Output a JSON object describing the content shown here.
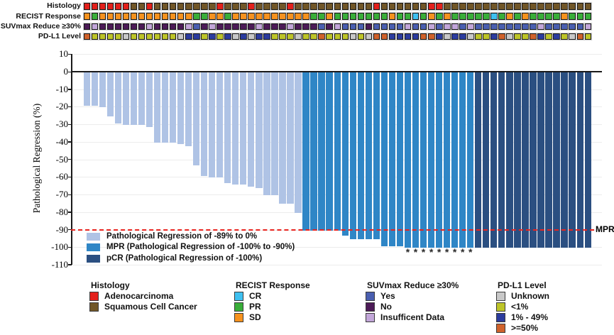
{
  "annotation_tracks": [
    {
      "label": "Histology",
      "palette": {
        "A": "#e3201b",
        "S": "#715627"
      },
      "legend_names": {
        "A": "Adenocarcinoma",
        "S": "Squamous Cell Cancer"
      },
      "codes": [
        "A",
        "A",
        "A",
        "A",
        "A",
        "A",
        "S",
        "S",
        "A",
        "S",
        "S",
        "S",
        "S",
        "S",
        "S",
        "S",
        "S",
        "A",
        "S",
        "S",
        "S",
        "A",
        "S",
        "S",
        "S",
        "S",
        "A",
        "S",
        "S",
        "S",
        "S",
        "S",
        "S",
        "S",
        "S",
        "S",
        "S",
        "A",
        "S",
        "S",
        "S",
        "S",
        "S",
        "S",
        "A",
        "A",
        "S",
        "S",
        "S",
        "S",
        "S",
        "S",
        "S",
        "S",
        "S",
        "S",
        "S",
        "S",
        "S",
        "S",
        "S",
        "S",
        "S",
        "S",
        "S"
      ]
    },
    {
      "label": "RECIST Response",
      "palette": {
        "C": "#3ec0f0",
        "P": "#39ae39",
        "D": "#f6921e"
      },
      "legend_names": {
        "C": "CR",
        "P": "PR",
        "D": "SD"
      },
      "codes": [
        "D",
        "P",
        "D",
        "D",
        "D",
        "D",
        "D",
        "D",
        "D",
        "D",
        "D",
        "D",
        "D",
        "D",
        "P",
        "P",
        "D",
        "D",
        "P",
        "D",
        "D",
        "D",
        "D",
        "D",
        "D",
        "D",
        "D",
        "D",
        "D",
        "P",
        "P",
        "D",
        "P",
        "P",
        "P",
        "P",
        "P",
        "P",
        "P",
        "D",
        "P",
        "P",
        "C",
        "P",
        "D",
        "P",
        "D",
        "P",
        "P",
        "P",
        "P",
        "P",
        "C",
        "P",
        "D",
        "P",
        "D",
        "P",
        "P",
        "P",
        "P",
        "D",
        "P",
        "P",
        "P"
      ]
    },
    {
      "label": "SUVmax Reduce ≥30%",
      "palette": {
        "Y": "#4a5fb0",
        "N": "#4c1b57",
        "I": "#c2a6d9"
      },
      "legend_names": {
        "Y": "Yes",
        "N": "No",
        "I": "Insufficent Data"
      },
      "codes": [
        "N",
        "I",
        "N",
        "N",
        "N",
        "N",
        "N",
        "N",
        "I",
        "N",
        "N",
        "N",
        "N",
        "I",
        "Y",
        "N",
        "I",
        "N",
        "N",
        "N",
        "N",
        "N",
        "I",
        "N",
        "N",
        "N",
        "I",
        "N",
        "N",
        "N",
        "Y",
        "N",
        "I",
        "Y",
        "Y",
        "Y",
        "N",
        "Y",
        "Y",
        "Y",
        "Y",
        "I",
        "Y",
        "Y",
        "I",
        "Y",
        "I",
        "I",
        "Y",
        "I",
        "Y",
        "Y",
        "Y",
        "Y",
        "Y",
        "Y",
        "Y",
        "Y",
        "I",
        "Y",
        "Y",
        "Y",
        "Y",
        "Y",
        "I"
      ]
    },
    {
      "label": "PD-L1 Level",
      "palette": {
        "U": "#c8c8c8",
        "L": "#bdc428",
        "M": "#2c3c9e",
        "H": "#d0622b"
      },
      "legend_names": {
        "U": "Unknown",
        "L": "<1%",
        "M": "1% - 49%",
        "H": ">=50%"
      },
      "codes": [
        "H",
        "L",
        "L",
        "L",
        "L",
        "U",
        "L",
        "L",
        "L",
        "L",
        "L",
        "L",
        "U",
        "M",
        "M",
        "L",
        "M",
        "L",
        "M",
        "U",
        "M",
        "U",
        "M",
        "M",
        "L",
        "L",
        "L",
        "U",
        "L",
        "L",
        "H",
        "L",
        "L",
        "L",
        "U",
        "L",
        "U",
        "H",
        "H",
        "M",
        "M",
        "M",
        "M",
        "H",
        "H",
        "M",
        "U",
        "M",
        "M",
        "U",
        "L",
        "L",
        "M",
        "H",
        "U",
        "L",
        "L",
        "H",
        "M",
        "L",
        "M",
        "L",
        "U",
        "H",
        "L"
      ]
    }
  ],
  "chart_data": {
    "type": "bar",
    "title": "",
    "xlabel": "",
    "ylabel": "Pathological Regression (%)",
    "ylim": [
      -110,
      10
    ],
    "yticks": [
      10,
      0,
      -10,
      -20,
      -30,
      -40,
      -50,
      -60,
      -70,
      -80,
      -90,
      -100,
      -110
    ],
    "grid": true,
    "n_bars": 65,
    "legend_position": "lower left inside plot",
    "series": [
      {
        "name": "Pathological Regression of -89% to 0%",
        "color": "#afc3e5",
        "values": [
          -19,
          -19,
          -20,
          -25,
          -29,
          -30,
          -30,
          -30,
          -31,
          -40,
          -40,
          -40,
          -41,
          -42,
          -53,
          -59,
          -60,
          -60,
          -63,
          -64,
          -64,
          -65,
          -66,
          -70,
          -70,
          -75,
          -75,
          -80
        ]
      },
      {
        "name": "MPR (Pathological Regression of -100% to -90%)",
        "color": "#2f86c6",
        "values": [
          -90,
          -90,
          -90,
          -90,
          -90,
          -93,
          -95,
          -95,
          -95,
          -95,
          -99,
          -99,
          -99,
          -100,
          -100,
          -100,
          -100,
          -100,
          -100,
          -100,
          -100,
          -100
        ]
      },
      {
        "name": "pCR (Pathological Regression of -100%)",
        "color": "#2b4f81",
        "values": [
          -100,
          -100,
          -100,
          -100,
          -100,
          -100,
          -100,
          -100,
          -100,
          -100,
          -100,
          -100,
          -100,
          -100,
          -100
        ]
      }
    ],
    "asterisk_bar_indices": [
      42,
      43,
      44,
      45,
      46,
      47,
      48,
      49,
      50
    ],
    "mpr_line": {
      "y": -90,
      "label": "MPR",
      "color": "#e8241f"
    }
  },
  "bottom_legends": [
    {
      "title": "Histology",
      "items": [
        {
          "label": "Adenocarcinoma",
          "color": "#e3201b"
        },
        {
          "label": "Squamous Cell Cancer",
          "color": "#715627"
        }
      ]
    },
    {
      "title": "RECIST Response",
      "items": [
        {
          "label": "CR",
          "color": "#3ec0f0"
        },
        {
          "label": "PR",
          "color": "#39ae39"
        },
        {
          "label": "SD",
          "color": "#f6921e"
        }
      ]
    },
    {
      "title": "SUVmax Reduce ≥30%",
      "items": [
        {
          "label": "Yes",
          "color": "#4a5fb0"
        },
        {
          "label": "No",
          "color": "#4c1b57"
        },
        {
          "label": "Insufficent Data",
          "color": "#c2a6d9"
        }
      ]
    },
    {
      "title": "PD-L1 Level",
      "items": [
        {
          "label": "Unknown",
          "color": "#c8c8c8"
        },
        {
          "label": "<1%",
          "color": "#bdc428"
        },
        {
          "label": "1% - 49%",
          "color": "#2c3c9e"
        },
        {
          "label": ">=50%",
          "color": "#d0622b"
        }
      ]
    }
  ]
}
